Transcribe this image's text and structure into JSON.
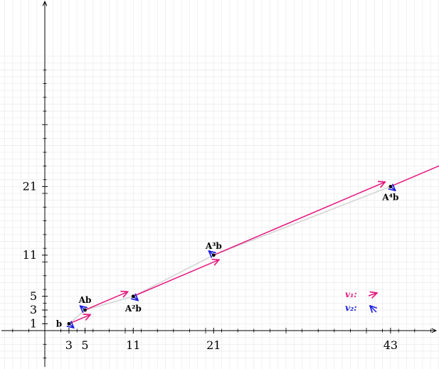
{
  "colors": {
    "v1": "#e5197f",
    "v2": "#1c1ce0",
    "path": "#d3d3d3",
    "grid": "#ececec",
    "axis": "#000000"
  },
  "chart_data": {
    "type": "scatter",
    "xlim": [
      -5.5,
      51
    ],
    "ylim": [
      -4.5,
      40
    ],
    "grid": true,
    "x_ticks": [
      3,
      5,
      11,
      21,
      43
    ],
    "y_ticks": [
      1,
      3,
      5,
      11,
      21
    ],
    "points": [
      {
        "label": "b",
        "x": 3,
        "y": 1
      },
      {
        "label": "Ab",
        "x": 5,
        "y": 3
      },
      {
        "label": "A²b",
        "x": 11,
        "y": 5
      },
      {
        "label": "A³b",
        "x": 21,
        "y": 11
      },
      {
        "label": "A⁴b",
        "x": 43,
        "y": 21
      }
    ],
    "v1_components": [
      {
        "point": "b",
        "dx": 2.67,
        "dy": 1.33
      },
      {
        "point": "Ab",
        "dx": 5.33,
        "dy": 2.67
      },
      {
        "point": "A²b",
        "dx": 10.67,
        "dy": 5.33
      },
      {
        "point": "A³b",
        "dx": 21.33,
        "dy": 10.67
      },
      {
        "point": "A⁴b",
        "dx": 42.67,
        "dy": 21.33
      }
    ],
    "v2_components": [
      {
        "point": "b",
        "dx": 0.33,
        "dy": -0.33
      },
      {
        "point": "Ab",
        "dx": -0.33,
        "dy": 0.33
      },
      {
        "point": "A²b",
        "dx": 0.33,
        "dy": -0.33
      },
      {
        "point": "A³b",
        "dx": -0.33,
        "dy": 0.33
      },
      {
        "point": "A⁴b",
        "dx": 0.33,
        "dy": -0.33
      }
    ],
    "legend": {
      "position": "bottom-right",
      "entries": [
        {
          "label": "v₁:",
          "series": "v1"
        },
        {
          "label": "v₂:",
          "series": "v2"
        }
      ]
    }
  }
}
